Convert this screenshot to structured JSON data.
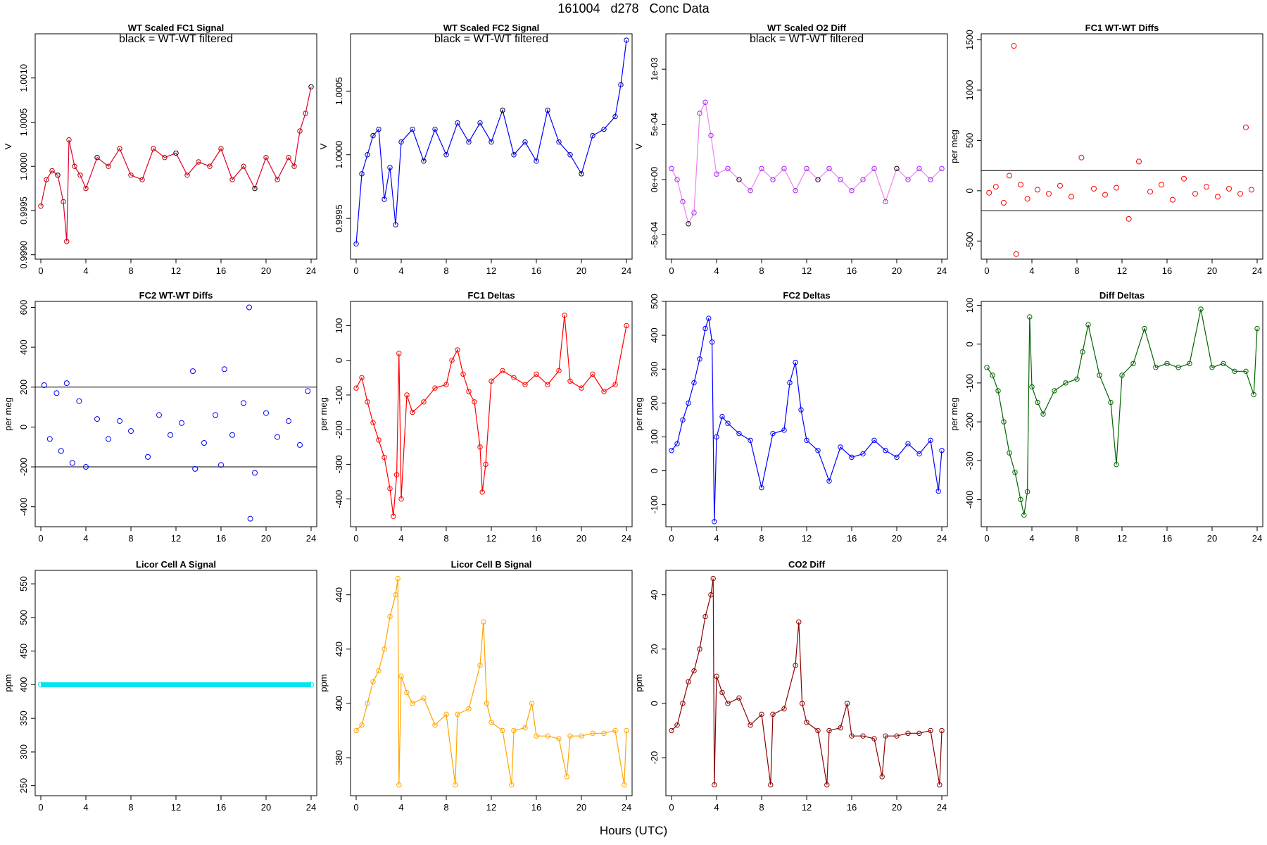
{
  "page": {
    "title": "161004   d278   Conc Data",
    "xlabel": "Hours (UTC)"
  },
  "chart_data": [
    {
      "id": "fc1-signal",
      "type": "line",
      "title": "WT Scaled FC1 Signal",
      "annotation": "black = WT-WT filtered",
      "xlabel": "",
      "ylabel": "V",
      "color": "#b30000",
      "line_color": "#e0002a",
      "filtered_color": "#000000",
      "xlim": [
        -0.5,
        24.5
      ],
      "ylim": [
        0.99895,
        1.0015
      ],
      "xticks": [
        "0",
        "4",
        "8",
        "12",
        "16",
        "20",
        "24"
      ],
      "yticks": [
        "0.9990",
        "0.9995",
        "1.0000",
        "1.0005",
        "1.0010"
      ],
      "x": [
        0,
        0.5,
        1,
        1.5,
        2,
        2.3,
        2.5,
        3,
        3.5,
        4,
        5,
        6,
        7,
        8,
        9,
        10,
        11,
        12,
        13,
        14,
        15,
        16,
        17,
        18,
        19,
        20,
        21,
        22,
        22.5,
        23,
        23.5,
        24
      ],
      "y": [
        0.99955,
        0.99985,
        0.99995,
        0.9999,
        0.9996,
        0.99915,
        1.0003,
        1.0,
        0.9999,
        0.99975,
        1.0001,
        1.0,
        1.0002,
        0.9999,
        0.99985,
        1.0002,
        1.0001,
        1.00015,
        0.9999,
        1.00005,
        1.0,
        1.0002,
        0.99985,
        1.0,
        0.99975,
        1.0001,
        0.99985,
        1.0001,
        1.0,
        1.0004,
        1.0006,
        1.0009
      ]
    },
    {
      "id": "fc2-signal",
      "type": "line",
      "title": "WT Scaled FC2 Signal",
      "annotation": "black = WT-WT filtered",
      "xlabel": "",
      "ylabel": "V",
      "color": "#0000aa",
      "line_color": "#0000ff",
      "filtered_color": "#000000",
      "xlim": [
        -0.5,
        24.5
      ],
      "ylim": [
        0.99918,
        1.00095
      ],
      "xticks": [
        "0",
        "4",
        "8",
        "12",
        "16",
        "20",
        "24"
      ],
      "yticks": [
        "0.9995",
        "1.0000",
        "1.0005"
      ],
      "x": [
        0,
        0.5,
        1,
        1.5,
        2,
        2.5,
        3,
        3.5,
        4,
        5,
        6,
        7,
        8,
        9,
        10,
        11,
        12,
        13,
        14,
        15,
        16,
        17,
        18,
        19,
        20,
        21,
        22,
        23,
        23.5,
        24
      ],
      "y": [
        0.9993,
        0.99985,
        1.0,
        1.00015,
        1.0002,
        0.99965,
        0.9999,
        0.99945,
        1.0001,
        1.0002,
        0.99995,
        1.0002,
        1.0,
        1.00025,
        1.0001,
        1.00025,
        1.0001,
        1.00035,
        1.0,
        1.0001,
        0.99995,
        1.00035,
        1.0001,
        1.0,
        0.99985,
        1.00015,
        1.0002,
        1.0003,
        1.00055,
        1.0009
      ]
    },
    {
      "id": "o2-diff",
      "type": "line",
      "title": "WT Scaled O2 Diff",
      "annotation": "black = WT-WT filtered",
      "xlabel": "",
      "ylabel": "V",
      "color": "#a020f0",
      "line_color": "#ee82ee",
      "filtered_color": "#000000",
      "xlim": [
        -0.5,
        24.5
      ],
      "ylim": [
        -0.00072,
        0.00132
      ],
      "xticks": [
        "0",
        "4",
        "8",
        "12",
        "16",
        "20",
        "24"
      ],
      "yticks": [
        "-5e-04",
        "0e+00",
        "5e-04",
        "1e-03"
      ],
      "ytick_values": [
        -0.0005,
        0,
        0.0005,
        0.001
      ],
      "x": [
        0,
        0.5,
        1,
        1.5,
        2,
        2.5,
        3,
        3.5,
        4,
        5,
        6,
        7,
        8,
        9,
        10,
        11,
        12,
        13,
        14,
        15,
        16,
        17,
        18,
        19,
        20,
        21,
        22,
        23,
        24
      ],
      "y": [
        0.0001,
        0.0,
        -0.0002,
        -0.0004,
        -0.0003,
        0.0006,
        0.0007,
        0.0004,
        5e-05,
        0.0001,
        0.0,
        -0.0001,
        0.0001,
        0.0,
        0.0001,
        -0.0001,
        0.0001,
        0.0,
        0.0001,
        0.0,
        -0.0001,
        0.0,
        0.0001,
        -0.0002,
        0.0001,
        0.0,
        0.0001,
        0.0,
        0.0001
      ]
    },
    {
      "id": "fc1-wtwt",
      "type": "scatter",
      "title": "FC1 WT-WT Diffs",
      "xlabel": "",
      "ylabel": "per meg",
      "color": "#ff0000",
      "xlim": [
        -0.5,
        24.5
      ],
      "ylim": [
        -680,
        1560
      ],
      "xticks": [
        "0",
        "4",
        "8",
        "12",
        "16",
        "20",
        "24"
      ],
      "yticks": [
        "-500",
        "0",
        "500",
        "1000",
        "1500"
      ],
      "hlines": [
        200,
        -200
      ],
      "x": [
        0.2,
        0.8,
        1.5,
        2.0,
        2.4,
        2.6,
        3.0,
        3.6,
        4.5,
        5.5,
        6.5,
        7.5,
        8.4,
        9.5,
        10.5,
        11.5,
        12.6,
        13.5,
        14.5,
        15.5,
        16.5,
        17.5,
        18.5,
        19.5,
        20.5,
        21.5,
        22.5,
        23.0,
        23.5
      ],
      "y": [
        -20,
        40,
        -120,
        150,
        1440,
        -630,
        60,
        -80,
        10,
        -30,
        50,
        -60,
        330,
        20,
        -40,
        30,
        -280,
        290,
        -10,
        60,
        -90,
        120,
        -30,
        40,
        -60,
        20,
        -30,
        630,
        10
      ]
    },
    {
      "id": "fc2-wtwt",
      "type": "scatter",
      "title": "FC2 WT-WT Diffs",
      "xlabel": "",
      "ylabel": "per meg",
      "color": "#0000ff",
      "xlim": [
        -0.5,
        24.5
      ],
      "ylim": [
        -500,
        630
      ],
      "xticks": [
        "0",
        "4",
        "8",
        "12",
        "16",
        "20",
        "24"
      ],
      "yticks": [
        "-400",
        "-200",
        "0",
        "200",
        "400",
        "600"
      ],
      "hlines": [
        200,
        -200
      ],
      "x": [
        0.3,
        0.8,
        1.4,
        1.8,
        2.3,
        2.8,
        3.4,
        4.0,
        5.0,
        6.0,
        7.0,
        8.0,
        9.5,
        10.5,
        11.5,
        12.5,
        13.5,
        13.7,
        14.5,
        15.5,
        16.0,
        16.3,
        17.0,
        18.0,
        18.5,
        18.6,
        19.0,
        20.0,
        21.0,
        22.0,
        23.0,
        23.7
      ],
      "y": [
        210,
        -60,
        170,
        -120,
        220,
        -180,
        130,
        -200,
        40,
        -60,
        30,
        -20,
        -150,
        60,
        -40,
        20,
        280,
        -210,
        -80,
        60,
        -190,
        290,
        -40,
        120,
        600,
        -460,
        -230,
        70,
        -50,
        30,
        -90,
        180
      ]
    },
    {
      "id": "fc1-deltas",
      "type": "line",
      "title": "FC1 Deltas",
      "xlabel": "",
      "ylabel": "per meg",
      "color": "#ff0000",
      "xlim": [
        -0.5,
        24.5
      ],
      "ylim": [
        -480,
        170
      ],
      "xticks": [
        "0",
        "4",
        "8",
        "12",
        "16",
        "20",
        "24"
      ],
      "yticks": [
        "-400",
        "-300",
        "-200",
        "-100",
        "0",
        "100"
      ],
      "x": [
        0,
        0.5,
        1,
        1.5,
        2,
        2.5,
        3,
        3.3,
        3.6,
        3.8,
        4,
        4.5,
        5,
        6,
        7,
        8,
        8.5,
        9,
        9.5,
        10,
        10.5,
        11,
        11.2,
        11.5,
        12,
        13,
        14,
        15,
        16,
        17,
        18,
        18.5,
        19,
        20,
        21,
        22,
        23,
        24
      ],
      "y": [
        -80,
        -50,
        -120,
        -180,
        -230,
        -280,
        -370,
        -450,
        -330,
        20,
        -400,
        -100,
        -150,
        -120,
        -80,
        -70,
        0,
        30,
        -40,
        -90,
        -120,
        -250,
        -380,
        -300,
        -60,
        -30,
        -50,
        -70,
        -40,
        -70,
        -30,
        130,
        -60,
        -80,
        -40,
        -90,
        -70,
        100
      ]
    },
    {
      "id": "fc2-deltas",
      "type": "line",
      "title": "FC2 Deltas",
      "xlabel": "",
      "ylabel": "per meg",
      "color": "#0000ff",
      "xlim": [
        -0.5,
        24.5
      ],
      "ylim": [
        -165,
        500
      ],
      "xticks": [
        "0",
        "4",
        "8",
        "12",
        "16",
        "20",
        "24"
      ],
      "yticks": [
        "-100",
        "0",
        "100",
        "200",
        "300",
        "400",
        "500"
      ],
      "x": [
        0,
        0.5,
        1,
        1.5,
        2,
        2.5,
        3,
        3.3,
        3.6,
        3.8,
        4,
        4.5,
        5,
        6,
        7,
        8,
        9,
        10,
        10.5,
        11,
        11.5,
        12,
        13,
        14,
        15,
        16,
        17,
        18,
        19,
        20,
        21,
        22,
        23,
        23.7,
        24
      ],
      "y": [
        60,
        80,
        150,
        200,
        260,
        330,
        420,
        450,
        380,
        -150,
        100,
        160,
        140,
        110,
        90,
        -50,
        110,
        120,
        260,
        320,
        180,
        90,
        60,
        -30,
        70,
        40,
        50,
        90,
        60,
        40,
        80,
        50,
        90,
        -60,
        60
      ]
    },
    {
      "id": "diff-deltas",
      "type": "line",
      "title": "Diff Deltas",
      "xlabel": "",
      "ylabel": "per meg",
      "color": "#006400",
      "xlim": [
        -0.5,
        24.5
      ],
      "ylim": [
        -470,
        110
      ],
      "xticks": [
        "0",
        "4",
        "8",
        "12",
        "16",
        "20",
        "24"
      ],
      "yticks": [
        "-400",
        "-300",
        "-200",
        "-100",
        "0",
        "100"
      ],
      "x": [
        0,
        0.5,
        1,
        1.5,
        2,
        2.5,
        3,
        3.3,
        3.6,
        3.8,
        4,
        4.5,
        5,
        6,
        7,
        8,
        8.5,
        9,
        10,
        11,
        11.5,
        12,
        13,
        14,
        15,
        16,
        17,
        18,
        19,
        20,
        21,
        22,
        23,
        23.7,
        24
      ],
      "y": [
        -60,
        -80,
        -120,
        -200,
        -280,
        -330,
        -400,
        -440,
        -380,
        70,
        -110,
        -150,
        -180,
        -120,
        -100,
        -90,
        -20,
        50,
        -80,
        -150,
        -310,
        -80,
        -50,
        40,
        -60,
        -50,
        -60,
        -50,
        90,
        -60,
        -50,
        -70,
        -70,
        -130,
        40
      ]
    },
    {
      "id": "licor-a",
      "type": "scatter",
      "title": "Licor Cell A Signal",
      "xlabel": "",
      "ylabel": "ppm",
      "color": "#00e5ee",
      "xlim": [
        -0.5,
        24.5
      ],
      "ylim": [
        235,
        570
      ],
      "xticks": [
        "0",
        "4",
        "8",
        "12",
        "16",
        "20",
        "24"
      ],
      "yticks": [
        "250",
        "300",
        "350",
        "400",
        "450",
        "500",
        "550"
      ],
      "x": [
        0,
        24
      ],
      "y": [
        400,
        400
      ]
    },
    {
      "id": "licor-b",
      "type": "line",
      "title": "Licor Cell B Signal",
      "xlabel": "",
      "ylabel": "ppm",
      "color": "#ffa500",
      "xlim": [
        -0.5,
        24.5
      ],
      "ylim": [
        366,
        449
      ],
      "xticks": [
        "0",
        "4",
        "8",
        "12",
        "16",
        "20",
        "24"
      ],
      "yticks": [
        "380",
        "400",
        "420",
        "440"
      ],
      "x": [
        0,
        0.5,
        1,
        1.5,
        2,
        2.5,
        3,
        3.5,
        3.7,
        3.8,
        4,
        4.5,
        5,
        6,
        7,
        8,
        8.8,
        9,
        10,
        11,
        11.3,
        11.6,
        12,
        13,
        13.8,
        14,
        15,
        15.6,
        16,
        17,
        18,
        18.7,
        19,
        20,
        21,
        22,
        23,
        23.8,
        24
      ],
      "y": [
        390,
        392,
        400,
        408,
        412,
        420,
        432,
        440,
        446,
        370,
        410,
        404,
        400,
        402,
        392,
        396,
        370,
        396,
        398,
        414,
        430,
        400,
        393,
        390,
        370,
        390,
        391,
        400,
        388,
        388,
        387,
        373,
        388,
        388,
        389,
        389,
        390,
        370,
        390
      ]
    },
    {
      "id": "co2-diff",
      "type": "line",
      "title": "CO2 Diff",
      "xlabel": "",
      "ylabel": "ppm",
      "color": "#8b0000",
      "xlim": [
        -0.5,
        24.5
      ],
      "ylim": [
        -34,
        49
      ],
      "xticks": [
        "0",
        "4",
        "8",
        "12",
        "16",
        "20",
        "24"
      ],
      "yticks": [
        "-20",
        "0",
        "20",
        "40"
      ],
      "x": [
        0,
        0.5,
        1,
        1.5,
        2,
        2.5,
        3,
        3.5,
        3.7,
        3.8,
        4,
        4.5,
        5,
        6,
        7,
        8,
        8.8,
        9,
        10,
        11,
        11.3,
        11.6,
        12,
        13,
        13.8,
        14,
        15,
        15.6,
        16,
        17,
        18,
        18.7,
        19,
        20,
        21,
        22,
        23,
        23.8,
        24
      ],
      "y": [
        -10,
        -8,
        0,
        8,
        12,
        20,
        32,
        40,
        46,
        -30,
        10,
        4,
        0,
        2,
        -8,
        -4,
        -30,
        -4,
        -2,
        14,
        30,
        0,
        -7,
        -10,
        -30,
        -10,
        -9,
        0,
        -12,
        -12,
        -13,
        -27,
        -12,
        -12,
        -11,
        -11,
        -10,
        -30,
        -10
      ]
    }
  ]
}
